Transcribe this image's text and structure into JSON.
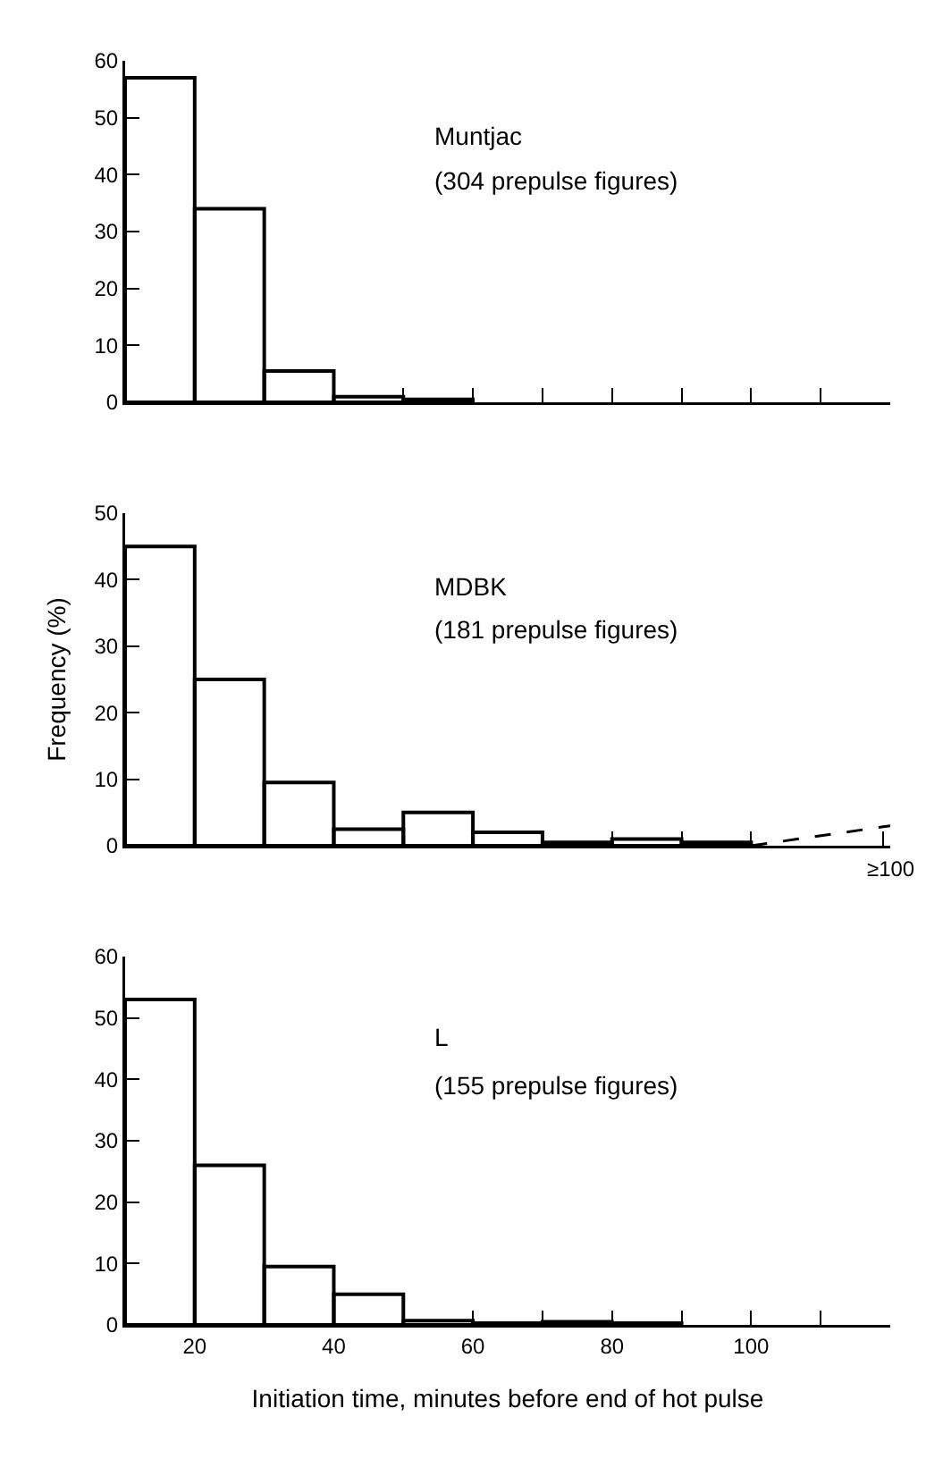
{
  "chart_data": [
    {
      "type": "histogram",
      "bins": [
        10,
        20,
        30,
        40,
        50,
        60
      ],
      "values": [
        57,
        34,
        5.5,
        1,
        0.5
      ],
      "color": "#000000",
      "xlim": [
        10,
        120
      ],
      "xticks": [
        {
          "value": 20,
          "label": null
        },
        {
          "value": 30,
          "label": null
        },
        {
          "value": 40,
          "label": null
        },
        {
          "value": 50,
          "label": null
        },
        {
          "value": 60,
          "label": null
        },
        {
          "value": 70,
          "label": null
        },
        {
          "value": 80,
          "label": null
        },
        {
          "value": 90,
          "label": null
        },
        {
          "value": 100,
          "label": null
        },
        {
          "value": 110,
          "label": null
        }
      ],
      "ylim": [
        0,
        60
      ],
      "yticks": [
        0,
        10,
        20,
        30,
        40,
        50,
        60
      ],
      "tick_labels": "y",
      "annotations": [
        "Muntjac",
        "(304 prepulse figures)"
      ]
    },
    {
      "type": "histogram",
      "bins": [
        10,
        20,
        30,
        40,
        50,
        60,
        70,
        80,
        90,
        100
      ],
      "values": [
        45,
        25,
        9.5,
        2.5,
        5,
        2,
        0.5,
        1,
        0.5
      ],
      "color": "#000000",
      "xlim": [
        10,
        120
      ],
      "xticks": [
        {
          "value": 20,
          "label": null
        },
        {
          "value": 30,
          "label": null
        },
        {
          "value": 40,
          "label": null
        },
        {
          "value": 50,
          "label": null
        },
        {
          "value": 60,
          "label": null
        },
        {
          "value": 70,
          "label": null
        },
        {
          "value": 80,
          "label": null
        },
        {
          "value": 90,
          "label": null
        },
        {
          "value": 100,
          "label": null
        },
        {
          "value": 119,
          "label": null
        }
      ],
      "ylim": [
        0,
        50
      ],
      "yticks": [
        0,
        10,
        20,
        30,
        40,
        50
      ],
      "tick_labels": "y",
      "ylabel": "Frequency (%)",
      "series": [
        {
          "type": "line",
          "x": [
            100,
            120
          ],
          "values": [
            0,
            3
          ],
          "color": "#000000",
          "line_style": "dashed"
        }
      ],
      "annotations": [
        "MDBK",
        "(181 prepulse figures)",
        "≥100"
      ]
    },
    {
      "type": "histogram",
      "bins": [
        10,
        20,
        30,
        40,
        50,
        60,
        70,
        80,
        90
      ],
      "values": [
        53,
        26,
        9.5,
        5,
        0.7,
        0.3,
        0.5,
        0.3
      ],
      "color": "#000000",
      "xlim": [
        10,
        120
      ],
      "xticks": [
        20,
        {
          "value": 30,
          "label": null
        },
        40,
        {
          "value": 50,
          "label": null
        },
        60,
        {
          "value": 70,
          "label": null
        },
        80,
        {
          "value": 90,
          "label": null
        },
        100,
        {
          "value": 110,
          "label": null
        }
      ],
      "ylim": [
        0,
        60
      ],
      "yticks": [
        0,
        10,
        20,
        30,
        40,
        50,
        60
      ],
      "xlabel": "Initiation time, minutes before end of hot pulse",
      "annotations": [
        "L",
        "(155 prepulse figures)"
      ]
    }
  ]
}
